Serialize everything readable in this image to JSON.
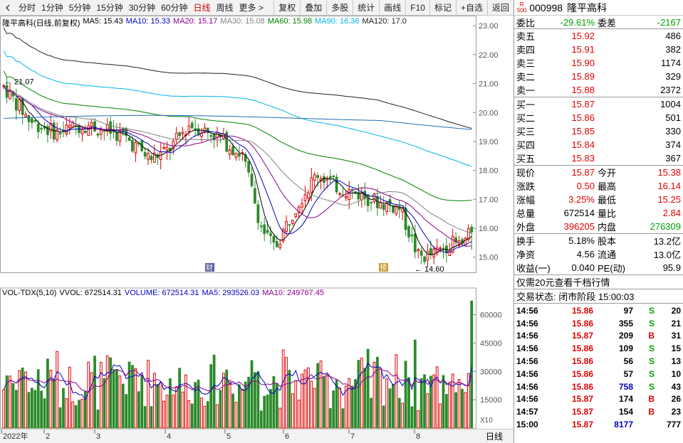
{
  "toolbar": {
    "periods": [
      "分时",
      "1分钟",
      "5分钟",
      "15分钟",
      "30分钟",
      "60分钟",
      "日线",
      "周线",
      "更多 >"
    ],
    "active": "日线",
    "actions": [
      "复权",
      "叠加",
      "多股",
      "统计",
      "画线",
      "F10",
      "标记",
      "+自选",
      "返回"
    ]
  },
  "main_legend": {
    "title": "隆平高科(日线,前复权)",
    "ma5": "MA5: 15.43",
    "ma10": "MA10: 15.33",
    "ma20": "MA20: 15.17",
    "ma30": "MA30: 15.08",
    "ma60": "MA60: 15.98",
    "ma90": "MA90: 16.36",
    "ma120": "MA120: 17.0"
  },
  "vol_legend": {
    "name": "VOL-TDX(5,10)",
    "vvol": "VVOL: 672514.31",
    "volume": "VOLUME: 672514.31",
    "ma5": "MA5: 293526.03",
    "ma10": "MA10: 249767.45"
  },
  "colors": {
    "up": "#e00000",
    "down": "#2a8a2a",
    "ma5": "#000000",
    "ma10": "#0000c8",
    "ma20": "#8b008b",
    "ma30": "#808080",
    "ma60": "#008000",
    "ma90": "#00b4e6",
    "ma120": "#202020",
    "ma250": "#1e6eb4"
  },
  "chart_data": [
    {
      "type": "candlestick",
      "title": "隆平高科(日线,前复权)",
      "ylim": [
        14.5,
        23.3
      ],
      "y_ticks": [
        15.0,
        16.0,
        17.0,
        18.0,
        19.0,
        20.0,
        21.0,
        22.0,
        23.0
      ],
      "annotations": {
        "high_label": "21.07",
        "low_label": "14.60",
        "markers": [
          "财",
          "预"
        ]
      },
      "x_period": "2022-01 to 2022-08",
      "month_labels": [
        "2022年",
        "2",
        "3",
        "4",
        "5",
        "6",
        "7",
        "8"
      ],
      "last": {
        "open": 15.38,
        "high": 16.14,
        "low": 15.25,
        "close": 15.87
      }
    },
    {
      "type": "bar",
      "title": "VOL-TDX(5,10)",
      "ylim": [
        0,
        70000
      ],
      "y_ticks": [
        15000,
        30000,
        45000,
        60000
      ],
      "unit_label": "X10",
      "last_volume": 672514.31
    }
  ],
  "quote": {
    "badge_r": "R",
    "badge_n": "500",
    "code": "000998",
    "name": "隆平高科",
    "weibi_label": "委比",
    "weibi": "-29.61%",
    "weicha_label": "委差",
    "weicha": "-2167",
    "asks": [
      {
        "label": "卖五",
        "price": "15.92",
        "vol": "486"
      },
      {
        "label": "卖四",
        "price": "15.91",
        "vol": "382"
      },
      {
        "label": "卖三",
        "price": "15.90",
        "vol": "1174"
      },
      {
        "label": "卖二",
        "price": "15.89",
        "vol": "329"
      },
      {
        "label": "卖一",
        "price": "15.88",
        "vol": "2372"
      }
    ],
    "bids": [
      {
        "label": "买一",
        "price": "15.87",
        "vol": "1004"
      },
      {
        "label": "买二",
        "price": "15.86",
        "vol": "501"
      },
      {
        "label": "买三",
        "price": "15.85",
        "vol": "330"
      },
      {
        "label": "买四",
        "price": "15.84",
        "vol": "374"
      },
      {
        "label": "买五",
        "price": "15.83",
        "vol": "367"
      }
    ],
    "stats": [
      {
        "l": "现价",
        "v": "15.87",
        "vc": "red",
        "l2": "今开",
        "v2": "15.38",
        "v2c": "red"
      },
      {
        "l": "涨跌",
        "v": "0.50",
        "vc": "red",
        "l2": "最高",
        "v2": "16.14",
        "v2c": "red"
      },
      {
        "l": "涨幅",
        "v": "3.25%",
        "vc": "red",
        "l2": "最低",
        "v2": "15.25",
        "v2c": "red"
      },
      {
        "l": "总量",
        "v": "672514",
        "vc": "",
        "l2": "量比",
        "v2": "2.84",
        "v2c": "red"
      },
      {
        "l": "外盘",
        "v": "396205",
        "vc": "red",
        "l2": "内盘",
        "v2": "276309",
        "v2c": "green"
      }
    ],
    "stats2": [
      {
        "l": "换手",
        "v": "5.18%",
        "l2": "股本",
        "v2": "13.2亿"
      },
      {
        "l": "净资",
        "v": "4.56",
        "l2": "流通",
        "v2": "13.0亿"
      },
      {
        "l": "收益(一)",
        "v": "0.040",
        "l2": "PE(动)",
        "v2": "95.9"
      }
    ],
    "notice": "仅需20元查看千档行情",
    "status": "交易状态: 闭市阶段 15:00:03",
    "ticks": [
      {
        "t": "14:56",
        "p": "15.86",
        "v": "97",
        "bs": "S",
        "n": "20"
      },
      {
        "t": "14:56",
        "p": "15.86",
        "v": "355",
        "bs": "S",
        "n": "21"
      },
      {
        "t": "14:56",
        "p": "15.87",
        "v": "209",
        "bs": "B",
        "n": "31"
      },
      {
        "t": "14:56",
        "p": "15.86",
        "v": "109",
        "bs": "S",
        "n": "15"
      },
      {
        "t": "14:56",
        "p": "15.86",
        "v": "56",
        "bs": "S",
        "n": "13"
      },
      {
        "t": "14:56",
        "p": "15.86",
        "v": "57",
        "bs": "S",
        "n": "10"
      },
      {
        "t": "14:56",
        "p": "15.86",
        "v": "758",
        "bs": "S",
        "n": "43"
      },
      {
        "t": "14:56",
        "p": "15.87",
        "v": "174",
        "bs": "B",
        "n": "26"
      },
      {
        "t": "14:57",
        "p": "15.87",
        "v": "154",
        "bs": "B",
        "n": "23"
      },
      {
        "t": "15:00",
        "p": "15.87",
        "v": "8177",
        "bs": "",
        "n": "777"
      }
    ]
  },
  "bottom": {
    "label": "日线"
  }
}
